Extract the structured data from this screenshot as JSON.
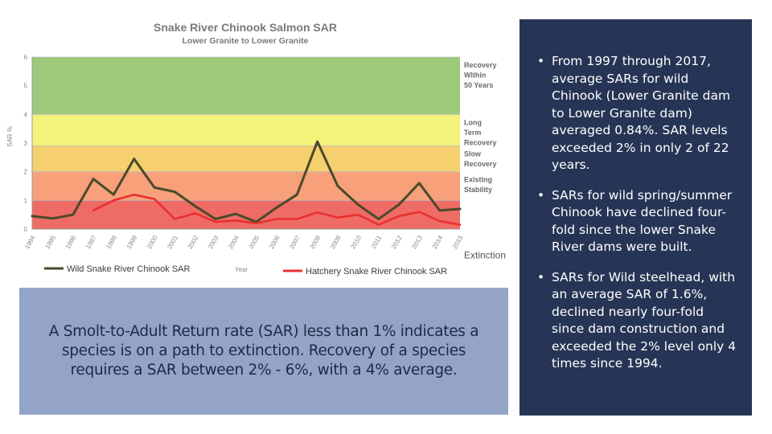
{
  "chart_data": {
    "type": "line",
    "title": "Snake River Chinook Salmon SAR",
    "subtitle": "Lower Granite to Lower Granite",
    "xlabel": "Year",
    "ylabel": "SAR %",
    "ylim": [
      0,
      6
    ],
    "yticks": [
      "0",
      "1",
      "2",
      "3",
      "4",
      "5",
      "6"
    ],
    "x": [
      "1994",
      "1995",
      "1996",
      "1997",
      "1998",
      "1999",
      "2000",
      "2001",
      "2002",
      "2003",
      "2004",
      "2005",
      "2006",
      "2007",
      "2008",
      "2009",
      "2010",
      "2011",
      "2012",
      "2013",
      "2014",
      "2015"
    ],
    "series": [
      {
        "name": "Wild Snake River Chinook SAR",
        "color": "#4a4a2a",
        "values": [
          0.45,
          0.37,
          0.5,
          1.75,
          1.2,
          2.45,
          1.45,
          1.3,
          0.8,
          0.35,
          0.53,
          0.25,
          0.75,
          1.2,
          3.05,
          1.5,
          0.85,
          0.35,
          0.85,
          1.6,
          0.65,
          0.7
        ]
      },
      {
        "name": "Hatchery Snake River Chinook SAR",
        "color": "#e83030",
        "values": [
          null,
          null,
          null,
          0.65,
          1.0,
          1.2,
          1.05,
          0.35,
          0.55,
          0.25,
          0.3,
          0.2,
          0.35,
          0.35,
          0.58,
          0.4,
          0.5,
          0.15,
          0.45,
          0.6,
          0.28,
          0.15
        ]
      }
    ],
    "bands": [
      {
        "from": 4,
        "to": 6,
        "label": "Recovery Within 50 Years",
        "color": "#9cc97a"
      },
      {
        "from": 2.9,
        "to": 4,
        "label": "Long Term Recovery",
        "color": "#f3f27a"
      },
      {
        "from": 2,
        "to": 2.9,
        "label": "Slow Recovery",
        "color": "#f6cf6e"
      },
      {
        "from": 1,
        "to": 2,
        "label": "Existing Stability",
        "color": "#f7a07a"
      },
      {
        "from": 0,
        "to": 1,
        "label": "Extinction",
        "color": "#ef6b66"
      }
    ],
    "legend_position": "bottom"
  },
  "info_box_text": "A Smolt-to-Adult Return rate (SAR) less than 1% indicates a species is on a path to extinction. Recovery of a species requires a SAR between 2% - 6%, with a 4% average.",
  "bullets": [
    "From 1997 through 2017, average SARs for wild Chinook (Lower Granite dam to Lower Granite dam) averaged 0.84%. SAR levels exceeded 2% in only 2 of 22 years.",
    "SARs for wild spring/summer Chinook have declined four-fold since the lower Snake River dams were built.",
    "SARs for Wild steelhead, with an average SAR of 1.6%, declined nearly four-fold since dam construction and exceeded the 2% level only 4 times since 1994."
  ],
  "bullet_symbol": "•"
}
